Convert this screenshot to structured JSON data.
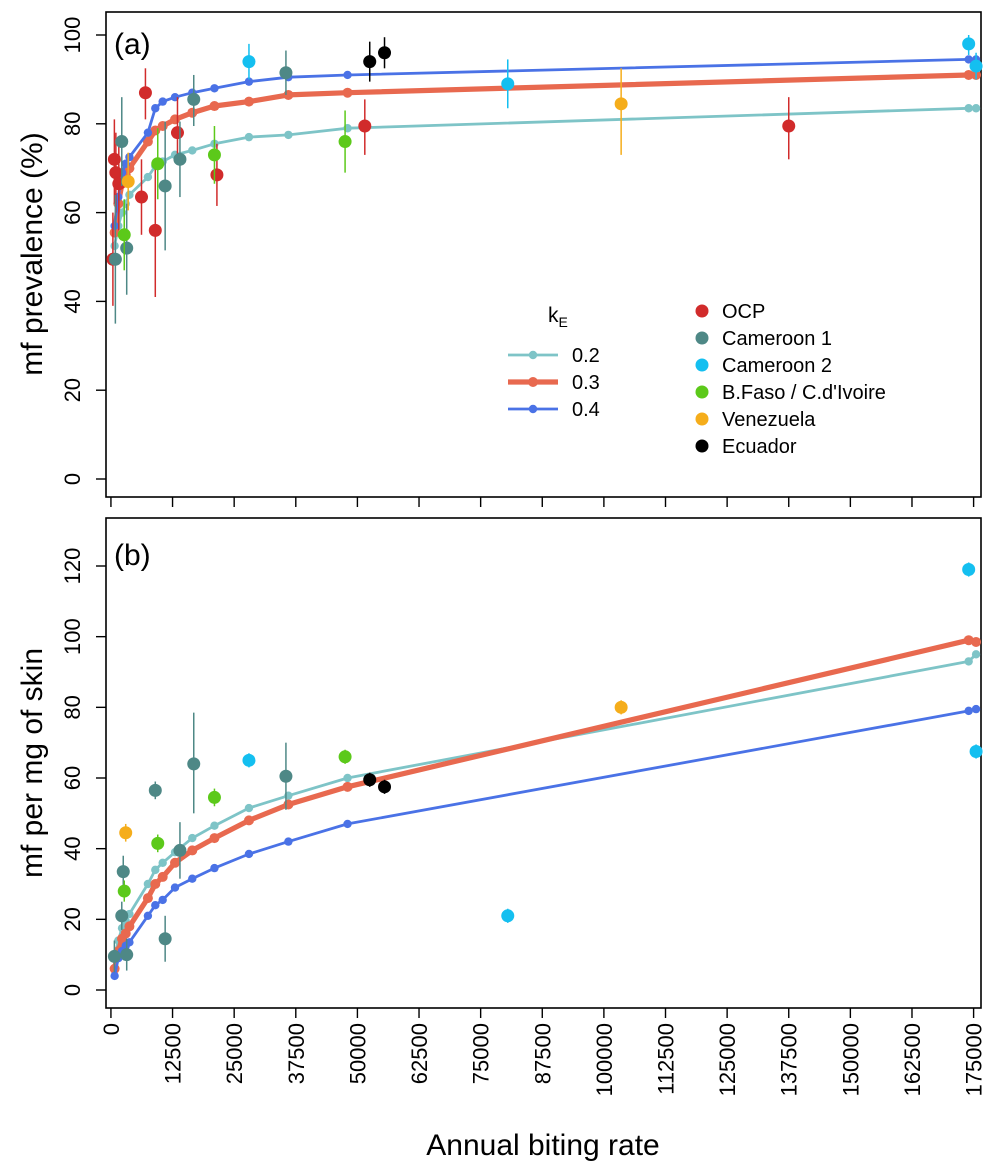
{
  "figure": {
    "xlabel": "Annual biting rate",
    "xticks": [
      0,
      12500,
      25000,
      37500,
      50000,
      62500,
      75000,
      87500,
      100000,
      112500,
      125000,
      137500,
      150000,
      162500,
      175000
    ],
    "xlim": [
      -1000,
      176500
    ]
  },
  "colors": {
    "kE_0.2": "#7ec4c7",
    "kE_0.3": "#e8694f",
    "kE_0.4": "#4a72e6",
    "OCP": "#d12b2b",
    "Cameroon 1": "#4e8886",
    "Cameroon 2": "#14bff0",
    "B.Faso / C.d'Ivoire": "#5cc91a",
    "Venezuela": "#f5ad1b",
    "Ecuador": "#000000"
  },
  "legend": {
    "model_title_main": "k",
    "model_title_sub": "E",
    "model_entries": [
      "0.2",
      "0.3",
      "0.4"
    ],
    "data_entries": [
      "OCP",
      "Cameroon 1",
      "Cameroon 2",
      "B.Faso / C.d'Ivoire",
      "Venezuela",
      "Ecuador"
    ]
  },
  "chart_data": [
    {
      "type": "line",
      "panel_label": "(a)",
      "ylabel": "mf prevalence (%)",
      "ylim": [
        0,
        100
      ],
      "yticks": [
        0,
        20,
        40,
        60,
        80,
        100
      ],
      "series": [
        {
          "name": "0.2",
          "x": [
            750,
            1500,
            2250,
            3000,
            3750,
            7500,
            9000,
            10500,
            13000,
            16500,
            21000,
            28000,
            36000,
            48000,
            174000,
            175500
          ],
          "y": [
            52.5,
            57,
            60,
            62,
            64,
            68,
            70.5,
            71.5,
            73,
            74,
            75.5,
            77,
            77.5,
            79,
            83.5,
            83.5
          ]
        },
        {
          "name": "0.3",
          "x": [
            750,
            1500,
            2250,
            3000,
            3750,
            7500,
            9000,
            10500,
            13000,
            16500,
            21000,
            28000,
            36000,
            48000,
            174000,
            175500
          ],
          "y": [
            55.5,
            62,
            66.5,
            68.5,
            70,
            76,
            78.5,
            79.5,
            81,
            82.5,
            84,
            85,
            86.5,
            87,
            91,
            91
          ]
        },
        {
          "name": "0.4",
          "x": [
            750,
            1500,
            2250,
            3000,
            3750,
            7500,
            9000,
            10500,
            13000,
            16500,
            21000,
            28000,
            36000,
            48000,
            174000,
            175500
          ],
          "y": [
            57,
            63.5,
            69,
            71,
            72.5,
            78,
            83.5,
            85,
            86,
            87,
            88,
            89.5,
            90.5,
            91,
            94.5,
            94.5
          ]
        }
      ],
      "observations": [
        {
          "group": "OCP",
          "x": 400,
          "y": 49.5,
          "lo": 39,
          "hi": 60
        },
        {
          "group": "OCP",
          "x": 700,
          "y": 72,
          "lo": 62,
          "hi": 81
        },
        {
          "group": "OCP",
          "x": 1000,
          "y": 69,
          "lo": 60,
          "hi": 78
        },
        {
          "group": "OCP",
          "x": 1600,
          "y": 66.5,
          "lo": 56,
          "hi": 76
        },
        {
          "group": "OCP",
          "x": 6200,
          "y": 63.5,
          "lo": 55,
          "hi": 72
        },
        {
          "group": "OCP",
          "x": 7000,
          "y": 87,
          "lo": 81,
          "hi": 92.5
        },
        {
          "group": "OCP",
          "x": 9000,
          "y": 56,
          "lo": 41,
          "hi": 70
        },
        {
          "group": "OCP",
          "x": 13500,
          "y": 78,
          "lo": 71,
          "hi": 86
        },
        {
          "group": "OCP",
          "x": 21500,
          "y": 68.5,
          "lo": 61.5,
          "hi": 75.5
        },
        {
          "group": "OCP",
          "x": 51500,
          "y": 79.5,
          "lo": 73,
          "hi": 85.5
        },
        {
          "group": "OCP",
          "x": 137500,
          "y": 79.5,
          "lo": 72,
          "hi": 86
        },
        {
          "group": "Cameroon 1",
          "x": 900,
          "y": 49.5,
          "lo": 35,
          "hi": 64
        },
        {
          "group": "Cameroon 1",
          "x": 2200,
          "y": 76,
          "lo": 66,
          "hi": 86
        },
        {
          "group": "Cameroon 1",
          "x": 3200,
          "y": 52,
          "lo": 41.5,
          "hi": 62
        },
        {
          "group": "Cameroon 1",
          "x": 11000,
          "y": 66,
          "lo": 51.5,
          "hi": 80.5
        },
        {
          "group": "Cameroon 1",
          "x": 14000,
          "y": 72,
          "lo": 63.5,
          "hi": 80.5
        },
        {
          "group": "Cameroon 1",
          "x": 16800,
          "y": 85.5,
          "lo": 79.5,
          "hi": 91
        },
        {
          "group": "Cameroon 1",
          "x": 35500,
          "y": 91.5,
          "lo": 86.5,
          "hi": 96.5
        },
        {
          "group": "Cameroon 2",
          "x": 28000,
          "y": 94,
          "lo": 90,
          "hi": 98
        },
        {
          "group": "Cameroon 2",
          "x": 80500,
          "y": 89,
          "lo": 83.5,
          "hi": 94.5
        },
        {
          "group": "Cameroon 2",
          "x": 174000,
          "y": 98,
          "lo": 95.5,
          "hi": 100
        },
        {
          "group": "Cameroon 2",
          "x": 175500,
          "y": 93,
          "lo": 90,
          "hi": 96
        },
        {
          "group": "B.Faso / C.d'Ivoire",
          "x": 2700,
          "y": 55,
          "lo": 47,
          "hi": 63
        },
        {
          "group": "B.Faso / C.d'Ivoire",
          "x": 9500,
          "y": 71,
          "lo": 63,
          "hi": 79
        },
        {
          "group": "B.Faso / C.d'Ivoire",
          "x": 21000,
          "y": 73,
          "lo": 66.5,
          "hi": 79.5
        },
        {
          "group": "B.Faso / C.d'Ivoire",
          "x": 47500,
          "y": 76,
          "lo": 69,
          "hi": 83
        },
        {
          "group": "Venezuela",
          "x": 3500,
          "y": 67,
          "lo": 60.5,
          "hi": 73.5
        },
        {
          "group": "Venezuela",
          "x": 103500,
          "y": 84.5,
          "lo": 73,
          "hi": 92.5
        },
        {
          "group": "Ecuador",
          "x": 52500,
          "y": 94,
          "lo": 89.5,
          "hi": 98.5
        },
        {
          "group": "Ecuador",
          "x": 55500,
          "y": 96,
          "lo": 92.5,
          "hi": 99.5
        }
      ]
    },
    {
      "type": "line",
      "panel_label": "(b)",
      "ylabel": "mf per mg of skin",
      "ylim": [
        0,
        125
      ],
      "yticks": [
        0,
        20,
        40,
        60,
        80,
        100,
        120
      ],
      "series": [
        {
          "name": "0.2",
          "x": [
            750,
            1500,
            2250,
            3000,
            3750,
            7500,
            9000,
            10500,
            13000,
            16500,
            21000,
            28000,
            36000,
            48000,
            174000,
            175500
          ],
          "y": [
            9,
            14,
            17.5,
            19.5,
            21.5,
            30,
            34,
            36,
            39,
            43,
            46.5,
            51.5,
            55,
            60,
            93,
            95
          ]
        },
        {
          "name": "0.3",
          "x": [
            750,
            1500,
            2250,
            3000,
            3750,
            7500,
            9000,
            10500,
            13000,
            16500,
            21000,
            28000,
            36000,
            48000,
            174000,
            175500
          ],
          "y": [
            6,
            11,
            14.5,
            16,
            18,
            26,
            30,
            32,
            36,
            39.5,
            43,
            48,
            52.5,
            57.5,
            99,
            98.5
          ]
        },
        {
          "name": "0.4",
          "x": [
            750,
            1500,
            2250,
            3000,
            3750,
            7500,
            9000,
            10500,
            13000,
            16500,
            21000,
            28000,
            36000,
            48000,
            174000,
            175500
          ],
          "y": [
            4,
            9,
            11,
            12.5,
            13.5,
            21,
            24,
            25.5,
            29,
            31.5,
            34.5,
            38.5,
            42,
            47,
            79,
            79.5
          ]
        }
      ],
      "observations": [
        {
          "group": "Cameroon 1",
          "x": 700,
          "y": 9.5,
          "lo": 5,
          "hi": 14
        },
        {
          "group": "Cameroon 1",
          "x": 2200,
          "y": 21,
          "lo": 17,
          "hi": 25
        },
        {
          "group": "Cameroon 1",
          "x": 2500,
          "y": 33.5,
          "lo": 29,
          "hi": 38
        },
        {
          "group": "Cameroon 1",
          "x": 3200,
          "y": 10,
          "lo": 5.5,
          "hi": 14.5
        },
        {
          "group": "Cameroon 1",
          "x": 9000,
          "y": 56.5,
          "lo": 54,
          "hi": 59
        },
        {
          "group": "Cameroon 1",
          "x": 11000,
          "y": 14.5,
          "lo": 8,
          "hi": 21
        },
        {
          "group": "Cameroon 1",
          "x": 14000,
          "y": 39.5,
          "lo": 31.5,
          "hi": 47.5
        },
        {
          "group": "Cameroon 1",
          "x": 16800,
          "y": 64,
          "lo": 50,
          "hi": 78.5
        },
        {
          "group": "Cameroon 1",
          "x": 35500,
          "y": 60.5,
          "lo": 51,
          "hi": 70
        },
        {
          "group": "Cameroon 2",
          "x": 28000,
          "y": 65,
          "lo": 63,
          "hi": 67
        },
        {
          "group": "Cameroon 2",
          "x": 80500,
          "y": 21,
          "lo": 19,
          "hi": 23
        },
        {
          "group": "Cameroon 2",
          "x": 174000,
          "y": 119,
          "lo": 117,
          "hi": 121
        },
        {
          "group": "Cameroon 2",
          "x": 175500,
          "y": 67.5,
          "lo": 65.5,
          "hi": 69.5
        },
        {
          "group": "B.Faso / C.d'Ivoire",
          "x": 2700,
          "y": 28,
          "lo": 25,
          "hi": 31
        },
        {
          "group": "B.Faso / C.d'Ivoire",
          "x": 9500,
          "y": 41.5,
          "lo": 39,
          "hi": 44
        },
        {
          "group": "B.Faso / C.d'Ivoire",
          "x": 21000,
          "y": 54.5,
          "lo": 52,
          "hi": 57
        },
        {
          "group": "B.Faso / C.d'Ivoire",
          "x": 47500,
          "y": 66,
          "lo": 64,
          "hi": 68
        },
        {
          "group": "Venezuela",
          "x": 3000,
          "y": 44.5,
          "lo": 42,
          "hi": 47
        },
        {
          "group": "Venezuela",
          "x": 103500,
          "y": 80,
          "lo": 78,
          "hi": 82
        },
        {
          "group": "Ecuador",
          "x": 52500,
          "y": 59.5,
          "lo": 57.5,
          "hi": 61.5
        },
        {
          "group": "Ecuador",
          "x": 55500,
          "y": 57.5,
          "lo": 55.5,
          "hi": 59.5
        }
      ]
    }
  ]
}
